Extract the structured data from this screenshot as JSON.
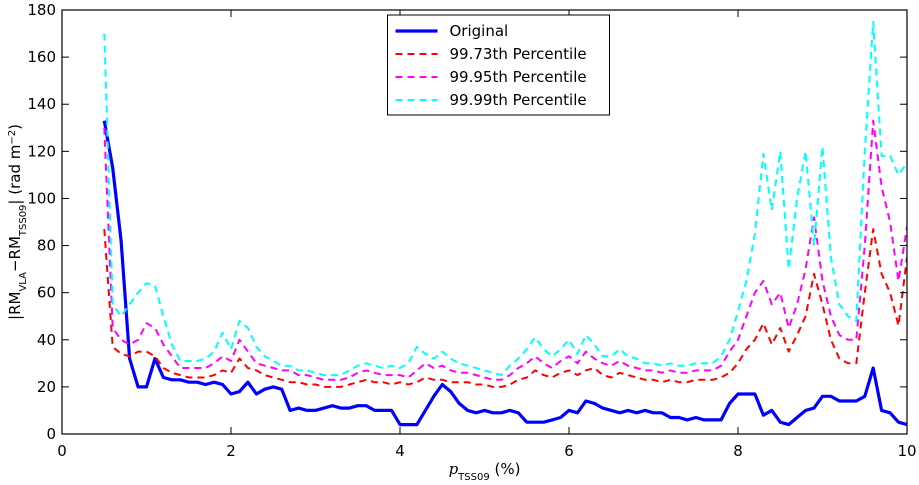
{
  "chart_data": {
    "type": "line",
    "x": [
      0.5,
      0.6,
      0.7,
      0.8,
      0.9,
      1.0,
      1.1,
      1.2,
      1.3,
      1.4,
      1.5,
      1.6,
      1.7,
      1.8,
      1.9,
      2.0,
      2.1,
      2.2,
      2.3,
      2.4,
      2.5,
      2.6,
      2.7,
      2.8,
      2.9,
      3.0,
      3.1,
      3.2,
      3.3,
      3.4,
      3.5,
      3.6,
      3.7,
      3.8,
      3.9,
      4.0,
      4.1,
      4.2,
      4.3,
      4.4,
      4.5,
      4.6,
      4.7,
      4.8,
      4.9,
      5.0,
      5.1,
      5.2,
      5.3,
      5.4,
      5.5,
      5.6,
      5.7,
      5.8,
      5.9,
      6.0,
      6.1,
      6.2,
      6.3,
      6.4,
      6.5,
      6.6,
      6.7,
      6.8,
      6.9,
      7.0,
      7.1,
      7.2,
      7.3,
      7.4,
      7.5,
      7.6,
      7.7,
      7.8,
      7.9,
      8.0,
      8.1,
      8.2,
      8.3,
      8.4,
      8.5,
      8.6,
      8.7,
      8.8,
      8.9,
      9.0,
      9.1,
      9.2,
      9.3,
      9.4,
      9.5,
      9.6,
      9.7,
      9.8,
      9.9,
      10.0
    ],
    "series": [
      {
        "name": "Original",
        "color": "#0000ff",
        "dashed": false,
        "values": [
          133,
          113,
          82,
          32,
          20,
          20,
          32,
          24,
          23,
          23,
          22,
          22,
          21,
          22,
          21,
          17,
          18,
          22,
          17,
          19,
          20,
          19,
          10,
          11,
          10,
          10,
          11,
          12,
          11,
          11,
          12,
          12,
          10,
          10,
          10,
          4,
          4,
          4,
          10,
          16,
          21,
          18,
          13,
          10,
          9,
          10,
          9,
          9,
          10,
          9,
          5,
          5,
          5,
          6,
          7,
          10,
          9,
          14,
          13,
          11,
          10,
          9,
          10,
          9,
          10,
          9,
          9,
          7,
          7,
          6,
          7,
          6,
          6,
          6,
          13,
          17,
          17,
          17,
          8,
          10,
          5,
          4,
          7,
          10,
          11,
          16,
          16,
          14,
          14,
          14,
          16,
          28,
          10,
          9,
          5,
          4
        ]
      },
      {
        "name": "99.73th Percentile",
        "color": "#ff0000",
        "dashed": true,
        "values": [
          87,
          37,
          34,
          33,
          35,
          35,
          33,
          28,
          26,
          25,
          24,
          24,
          24,
          25,
          27,
          26,
          32,
          28,
          27,
          25,
          24,
          23,
          22,
          22,
          21,
          21,
          20,
          20,
          20,
          21,
          22,
          23,
          22,
          22,
          21,
          22,
          21,
          22,
          24,
          23,
          23,
          22,
          22,
          22,
          21,
          21,
          20,
          20,
          21,
          23,
          24,
          27,
          25,
          24,
          26,
          27,
          25,
          27,
          28,
          25,
          24,
          26,
          25,
          24,
          23,
          23,
          22,
          23,
          22,
          22,
          23,
          23,
          23,
          24,
          26,
          30,
          36,
          40,
          47,
          38,
          45,
          35,
          42,
          50,
          68,
          55,
          40,
          32,
          30,
          30,
          60,
          87,
          68,
          60,
          46,
          75
        ]
      },
      {
        "name": "99.95th Percentile",
        "color": "#ff00ff",
        "dashed": true,
        "values": [
          130,
          45,
          40,
          38,
          40,
          47,
          45,
          38,
          33,
          28,
          28,
          28,
          28,
          30,
          33,
          31,
          40,
          35,
          30,
          29,
          28,
          27,
          27,
          25,
          25,
          24,
          23,
          23,
          23,
          24,
          26,
          27,
          26,
          25,
          25,
          25,
          24,
          27,
          30,
          28,
          29,
          27,
          26,
          26,
          25,
          24,
          23,
          23,
          25,
          28,
          30,
          33,
          30,
          28,
          31,
          33,
          30,
          35,
          32,
          30,
          29,
          31,
          29,
          28,
          27,
          27,
          26,
          27,
          26,
          26,
          27,
          27,
          27,
          29,
          35,
          40,
          50,
          60,
          65,
          55,
          60,
          45,
          55,
          70,
          92,
          65,
          50,
          42,
          40,
          40,
          80,
          133,
          105,
          90,
          65,
          88
        ]
      },
      {
        "name": "99.99th Percentile",
        "color": "#00ffff",
        "dashed": true,
        "values": [
          170,
          55,
          50,
          55,
          60,
          64,
          63,
          50,
          38,
          31,
          31,
          31,
          32,
          35,
          43,
          36,
          48,
          45,
          37,
          33,
          31,
          29,
          29,
          27,
          27,
          26,
          25,
          25,
          25,
          27,
          29,
          30,
          29,
          28,
          29,
          28,
          30,
          37,
          34,
          32,
          35,
          32,
          30,
          29,
          28,
          27,
          26,
          25,
          29,
          32,
          36,
          41,
          36,
          33,
          36,
          40,
          34,
          42,
          38,
          33,
          33,
          36,
          33,
          32,
          30,
          30,
          29,
          30,
          29,
          29,
          30,
          30,
          30,
          33,
          40,
          52,
          65,
          85,
          119,
          95,
          120,
          70,
          100,
          120,
          80,
          122,
          75,
          55,
          50,
          48,
          120,
          175,
          118,
          118,
          110,
          115
        ]
      }
    ],
    "xlim": [
      0,
      10
    ],
    "xticks": [
      0,
      2,
      4,
      6,
      8,
      10
    ],
    "ylim": [
      0,
      180
    ],
    "yticks": [
      0,
      20,
      40,
      60,
      80,
      100,
      120,
      140,
      160,
      180
    ],
    "x_label": [
      {
        "text": "p",
        "style": "italic"
      },
      {
        "text": "TSS09",
        "style": "sub"
      },
      {
        "text": " (%)",
        "style": "normal"
      }
    ],
    "y_label": [
      {
        "text": "|RM",
        "style": "normal"
      },
      {
        "text": "VLA",
        "style": "sub"
      },
      {
        "text": "−RM",
        "style": "normal"
      },
      {
        "text": "TSS09",
        "style": "sub"
      },
      {
        "text": "| (rad m",
        "style": "normal"
      },
      {
        "text": "−2",
        "style": "sup"
      },
      {
        "text": ")",
        "style": "normal"
      }
    ],
    "legend": "upper center",
    "grid": false
  }
}
